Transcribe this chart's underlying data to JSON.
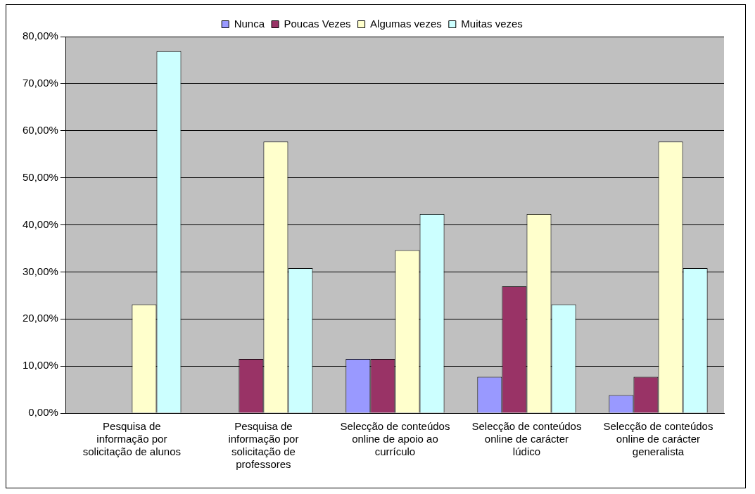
{
  "chart_data": {
    "type": "bar",
    "categories": [
      "Pesquisa de informação por solicitação de alunos",
      "Pesquisa de informação por solicitação de professores",
      "Selecção de conteúdos online de apoio ao currículo",
      "Selecção de conteúdos online de carácter lúdico",
      "Selecção de conteúdos online de carácter generalista"
    ],
    "series": [
      {
        "name": "Nunca",
        "color": "#9999ff",
        "values": [
          0,
          0,
          11.5,
          7.7,
          3.8
        ]
      },
      {
        "name": "Poucas Vezes",
        "color": "#993366",
        "values": [
          0,
          11.5,
          11.5,
          26.9,
          7.7
        ]
      },
      {
        "name": "Algumas vezes",
        "color": "#ffffcc",
        "values": [
          23.1,
          57.7,
          34.6,
          42.3,
          57.7
        ]
      },
      {
        "name": "Muitas vezes",
        "color": "#ccffff",
        "values": [
          76.9,
          30.8,
          42.3,
          23.1,
          30.8
        ]
      }
    ],
    "ylim": [
      0,
      80
    ],
    "yticks": [
      {
        "value": 0,
        "label": "0,00%"
      },
      {
        "value": 10,
        "label": "10,00%"
      },
      {
        "value": 20,
        "label": "20,00%"
      },
      {
        "value": 30,
        "label": "30,00%"
      },
      {
        "value": 40,
        "label": "40,00%"
      },
      {
        "value": 50,
        "label": "50,00%"
      },
      {
        "value": 60,
        "label": "60,00%"
      },
      {
        "value": 70,
        "label": "70,00%"
      },
      {
        "value": 80,
        "label": "80,00%"
      }
    ],
    "grid": "y",
    "legend": "top"
  }
}
